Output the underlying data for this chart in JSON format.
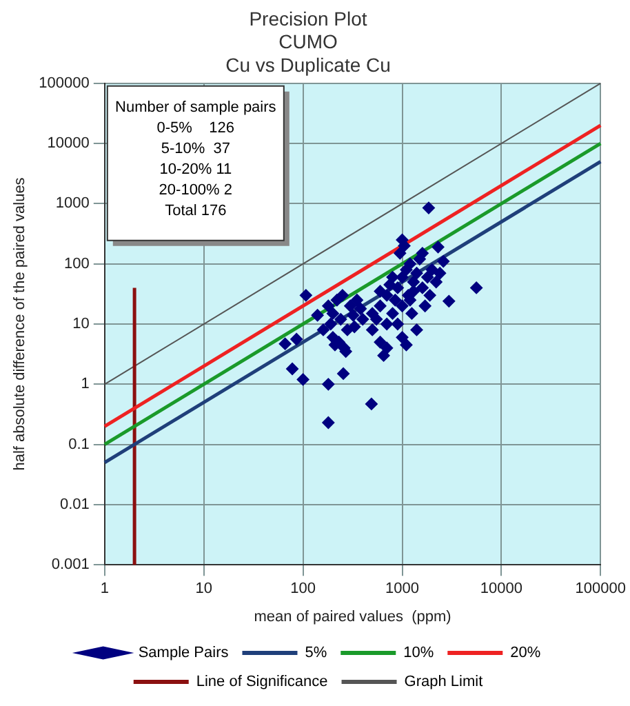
{
  "chart_data": {
    "type": "scatter",
    "title": "Precision Plot",
    "subtitle": "CUMO\nCu vs Duplicate Cu",
    "xlabel": "mean of paired values  (ppm)",
    "ylabel": "half absolute difference of the paired values",
    "log": "xy",
    "xlim": [
      1,
      100000
    ],
    "ylim": [
      0.001,
      100000
    ],
    "xticks": [
      1,
      10,
      100,
      1000,
      10000,
      100000
    ],
    "yticks": [
      0.001,
      0.01,
      0.1,
      1,
      10,
      100,
      1000,
      10000,
      100000
    ],
    "grid": true,
    "legend": "bottom",
    "annotations": [
      "Number of sample pairs",
      "0-5%    126",
      "5-10%  37",
      "10-20% 11",
      "20-100% 2",
      "Total 176"
    ],
    "series": [
      {
        "name": "Sample Pairs",
        "marker": "diamond",
        "color": "#000080",
        "x": [
          78,
          100,
          180,
          180,
          255,
          490,
          5600,
          2960,
          1850,
          1000,
          2300,
          2600,
          107,
          66,
          86,
          140,
          160,
          180,
          200,
          220,
          240,
          200,
          230,
          260,
          280,
          300,
          320,
          350,
          250,
          190,
          270,
          210,
          330,
          380,
          400,
          500,
          550,
          600,
          650,
          700,
          600,
          700,
          800,
          900,
          1000,
          1100,
          1200,
          1300,
          1400,
          1500,
          800,
          900,
          1000,
          1100,
          1200,
          1300,
          1600,
          1800,
          2000,
          2200,
          700,
          850,
          950,
          1050,
          1150,
          1250,
          1400,
          1700,
          1900,
          2400,
          1000,
          750,
          600,
          500,
          1600
        ],
        "values": [
          1.8,
          1.2,
          1.0,
          0.23,
          1.5,
          0.47,
          40,
          24,
          850,
          250,
          190,
          110,
          30,
          4.7,
          5.6,
          14,
          8,
          20,
          15,
          25,
          12,
          6,
          5,
          4,
          8,
          20,
          14,
          25,
          30,
          10,
          3.5,
          4.5,
          9,
          18,
          12,
          8,
          12,
          5,
          3,
          4,
          20,
          30,
          15,
          40,
          60,
          80,
          100,
          50,
          70,
          120,
          60,
          10,
          6,
          4.5,
          25,
          35,
          40,
          60,
          80,
          50,
          10,
          25,
          150,
          200,
          30,
          15,
          8,
          20,
          30,
          70,
          20,
          45,
          35,
          15,
          150
        ]
      },
      {
        "name": "5%",
        "type": "line",
        "marker": "none",
        "line_style": "solid",
        "color": "#1f3f7a",
        "x": [
          1,
          100000
        ],
        "values": [
          0.05,
          5000
        ]
      },
      {
        "name": "10%",
        "type": "line",
        "marker": "none",
        "line_style": "solid",
        "color": "#1a9a2a",
        "x": [
          1,
          100000
        ],
        "values": [
          0.1,
          10000
        ]
      },
      {
        "name": "20%",
        "type": "line",
        "marker": "none",
        "line_style": "solid",
        "color": "#ee2222",
        "x": [
          1,
          100000
        ],
        "values": [
          0.2,
          20000
        ]
      },
      {
        "name": "Line of Significance",
        "type": "line",
        "marker": "none",
        "line_style": "solid",
        "color": "#8b1010",
        "x": [
          2,
          2
        ],
        "values": [
          0.001,
          40
        ]
      },
      {
        "name": "Graph Limit",
        "type": "line",
        "marker": "none",
        "line_style": "solid",
        "color": "#555555",
        "x": [
          1,
          100000
        ],
        "values": [
          1,
          100000
        ]
      }
    ]
  }
}
